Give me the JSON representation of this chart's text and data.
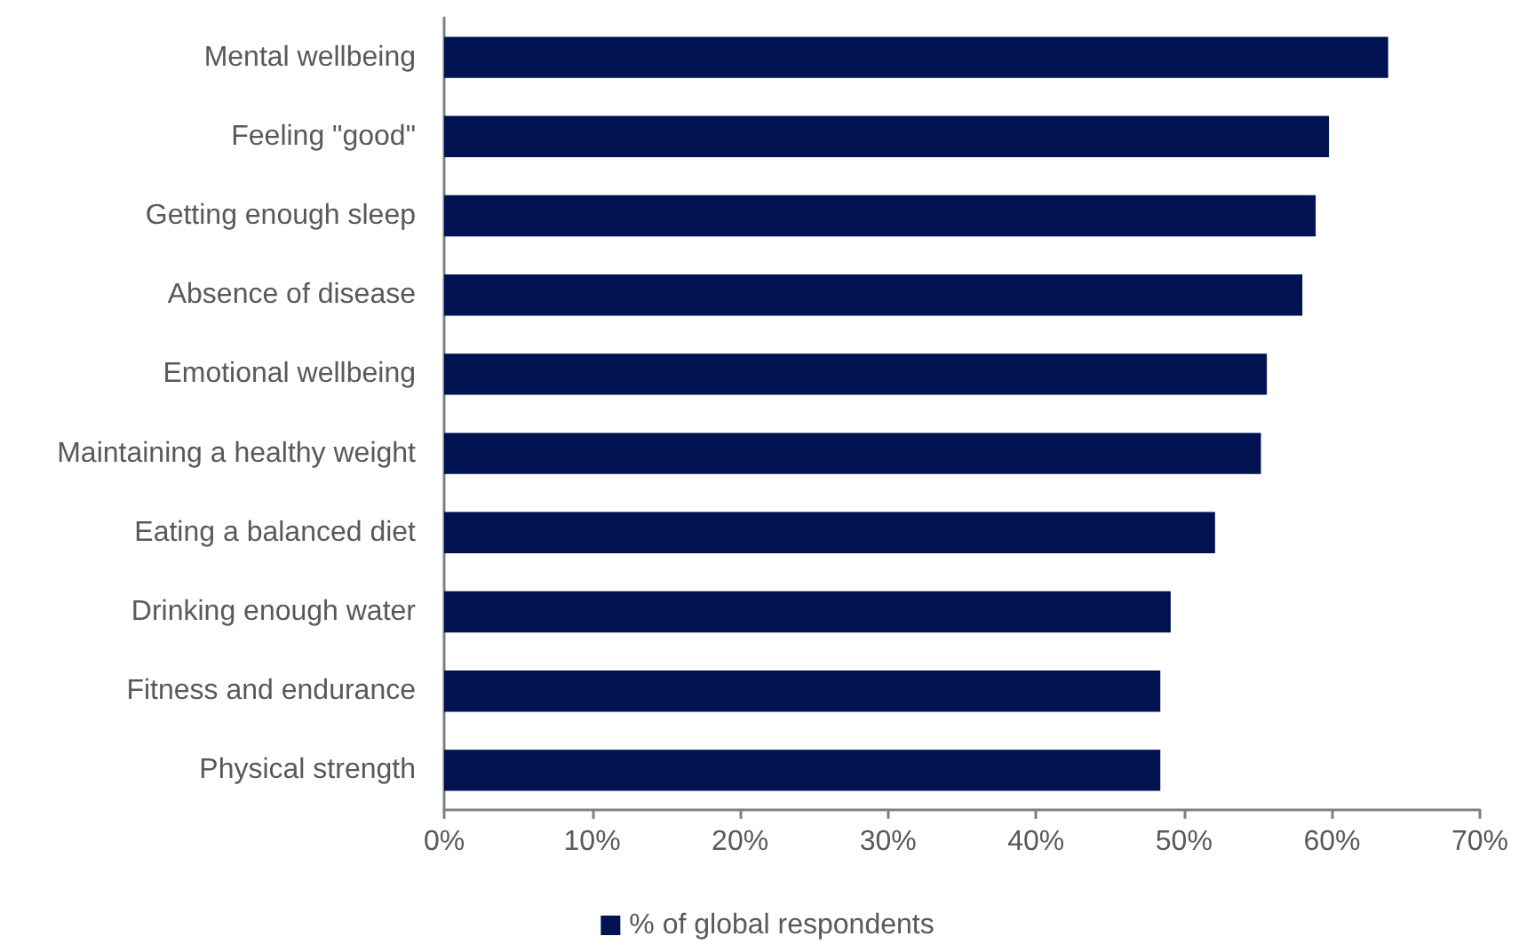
{
  "chart_data": {
    "type": "bar",
    "orientation": "horizontal",
    "categories": [
      "Mental wellbeing",
      "Feeling \"good\"",
      "Getting enough sleep",
      "Absence of disease",
      "Emotional wellbeing",
      "Maintaining a healthy weight",
      "Eating a balanced diet",
      "Drinking enough water",
      "Fitness and endurance",
      "Physical strength"
    ],
    "series": [
      {
        "name": "% of global respondents",
        "color": "#001251",
        "values": [
          63.8,
          59.8,
          58.9,
          58.0,
          55.6,
          55.2,
          52.1,
          49.1,
          48.4,
          48.4
        ]
      }
    ],
    "xlim": [
      0,
      70
    ],
    "xticks": [
      {
        "value": 0,
        "label": "0%"
      },
      {
        "value": 10,
        "label": "10%"
      },
      {
        "value": 20,
        "label": "20%"
      },
      {
        "value": 30,
        "label": "30%"
      },
      {
        "value": 40,
        "label": "40%"
      },
      {
        "value": 50,
        "label": "50%"
      },
      {
        "value": 60,
        "label": "60%"
      },
      {
        "value": 70,
        "label": "70%"
      }
    ],
    "grid": false,
    "legend": "bottom"
  }
}
